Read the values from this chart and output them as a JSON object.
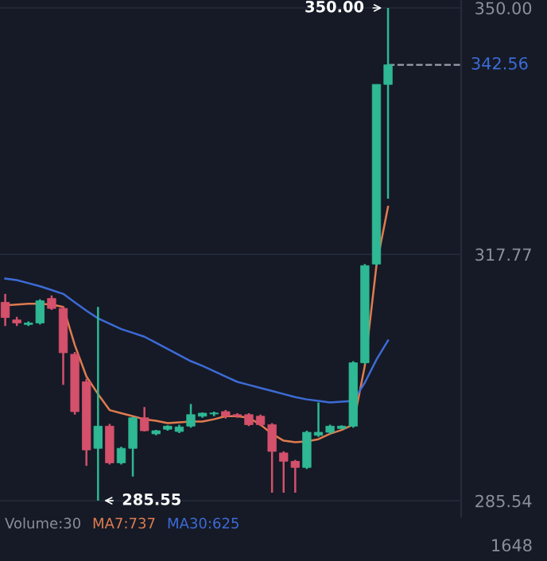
{
  "chart_data": {
    "type": "candlestick",
    "categories": [
      null,
      null,
      null,
      null,
      null,
      null,
      null,
      null,
      null,
      null,
      null,
      null,
      null,
      null,
      null,
      null,
      null,
      null,
      null,
      null,
      null,
      null,
      null,
      null,
      null,
      null,
      null,
      null,
      null,
      null,
      null,
      null,
      null,
      null
    ],
    "ohlc": [
      [
        311.5,
        312.6,
        308.4,
        309.5
      ],
      [
        309.2,
        309.6,
        308.4,
        308.8
      ],
      [
        308.6,
        309.0,
        308.4,
        308.8
      ],
      [
        308.8,
        311.9,
        308.6,
        311.7
      ],
      [
        312.0,
        312.4,
        310.5,
        310.7
      ],
      [
        310.7,
        311.0,
        300.7,
        304.9
      ],
      [
        304.7,
        305.0,
        296.8,
        297.2
      ],
      [
        301.1,
        301.5,
        290.1,
        292.2
      ],
      [
        292.4,
        310.9,
        285.55,
        295.3
      ],
      [
        295.3,
        295.6,
        290.3,
        290.5
      ],
      [
        290.5,
        292.6,
        290.3,
        292.4
      ],
      [
        292.4,
        296.5,
        288.7,
        296.4
      ],
      [
        296.4,
        297.8,
        294.6,
        294.7
      ],
      [
        294.3,
        294.8,
        294.1,
        294.7
      ],
      [
        294.9,
        295.4,
        294.7,
        295.3
      ],
      [
        294.6,
        295.5,
        294.4,
        295.2
      ],
      [
        295.3,
        298.2,
        295.1,
        296.8
      ],
      [
        296.6,
        297.1,
        296.4,
        297.0
      ],
      [
        296.9,
        297.2,
        296.6,
        297.0
      ],
      [
        297.2,
        297.4,
        296.3,
        296.6
      ],
      [
        296.8,
        297.0,
        296.4,
        296.6
      ],
      [
        296.8,
        297.0,
        295.3,
        295.5
      ],
      [
        296.6,
        296.8,
        295.3,
        295.5
      ],
      [
        295.5,
        295.7,
        286.6,
        292.0
      ],
      [
        291.8,
        292.0,
        286.6,
        290.7
      ],
      [
        290.7,
        290.9,
        286.6,
        289.9
      ],
      [
        289.9,
        294.7,
        289.7,
        294.5
      ],
      [
        294.1,
        298.4,
        293.9,
        294.5
      ],
      [
        294.5,
        295.5,
        294.3,
        295.3
      ],
      [
        295.0,
        295.4,
        294.9,
        295.3
      ],
      [
        295.3,
        303.8,
        295.1,
        303.6
      ],
      [
        303.6,
        316.5,
        303.4,
        316.3
      ],
      [
        316.5,
        340.0,
        316.3,
        340.0
      ],
      [
        340.0,
        350.0,
        325.05,
        342.56
      ]
    ],
    "colors": [
      "#d4506b",
      "#d4506b",
      "#2fb894",
      "#2fb894",
      "#d4506b",
      "#d4506b",
      "#d4506b",
      "#d4506b",
      "#2fb894",
      "#d4506b",
      "#2fb894",
      "#2fb894",
      "#d4506b",
      "#2fb894",
      "#2fb894",
      "#2fb894",
      "#2fb894",
      "#2fb894",
      "#2fb894",
      "#d4506b",
      "#d4506b",
      "#d4506b",
      "#d4506b",
      "#d4506b",
      "#d4506b",
      "#d4506b",
      "#2fb894",
      "#2fb894",
      "#2fb894",
      "#2fb894",
      "#2fb894",
      "#2fb894",
      "#2fb894",
      "#2fb894"
    ],
    "series": [
      {
        "type": "line",
        "color": "#e07b4f",
        "values": [
          311.1,
          311.2,
          311.3,
          311.3,
          311.2,
          310.9,
          305.9,
          301.8,
          299.5,
          297.4,
          297.0,
          296.6,
          296.2,
          296.0,
          295.7,
          295.8,
          295.9,
          295.9,
          296.2,
          296.6,
          296.6,
          296.4,
          295.5,
          294.3,
          293.4,
          293.2,
          293.3,
          293.6,
          294.3,
          294.8,
          295.5,
          303.2,
          316.3,
          324.0
        ]
      },
      {
        "type": "line",
        "color": "#3d6bd6",
        "values": [
          314.6,
          314.4,
          314.0,
          313.6,
          313.1,
          312.6,
          311.5,
          310.4,
          309.4,
          308.7,
          308.0,
          307.5,
          307.0,
          306.2,
          305.4,
          304.6,
          303.8,
          303.2,
          302.5,
          301.8,
          301.1,
          300.7,
          300.3,
          299.9,
          299.5,
          299.1,
          298.8,
          298.6,
          298.4,
          298.5,
          298.6,
          301.0,
          304.0,
          306.5
        ]
      }
    ],
    "ylim": [
      283.46,
      351.04
    ],
    "yticks": [
      {
        "value": 350.0,
        "label": "350.00"
      },
      {
        "value": 317.77,
        "label": "317.77"
      },
      {
        "value": 285.54,
        "label": "285.54"
      }
    ],
    "grid": "y",
    "ref_lines": [
      {
        "axis": "y",
        "value": 342.56,
        "label": "342.56",
        "color": "#9aa0ad",
        "line_style": "dashed"
      }
    ],
    "annotations": [
      "350.00",
      "285.55",
      "Volume:30",
      "MA7:737",
      "MA30:625",
      "1648"
    ]
  }
}
